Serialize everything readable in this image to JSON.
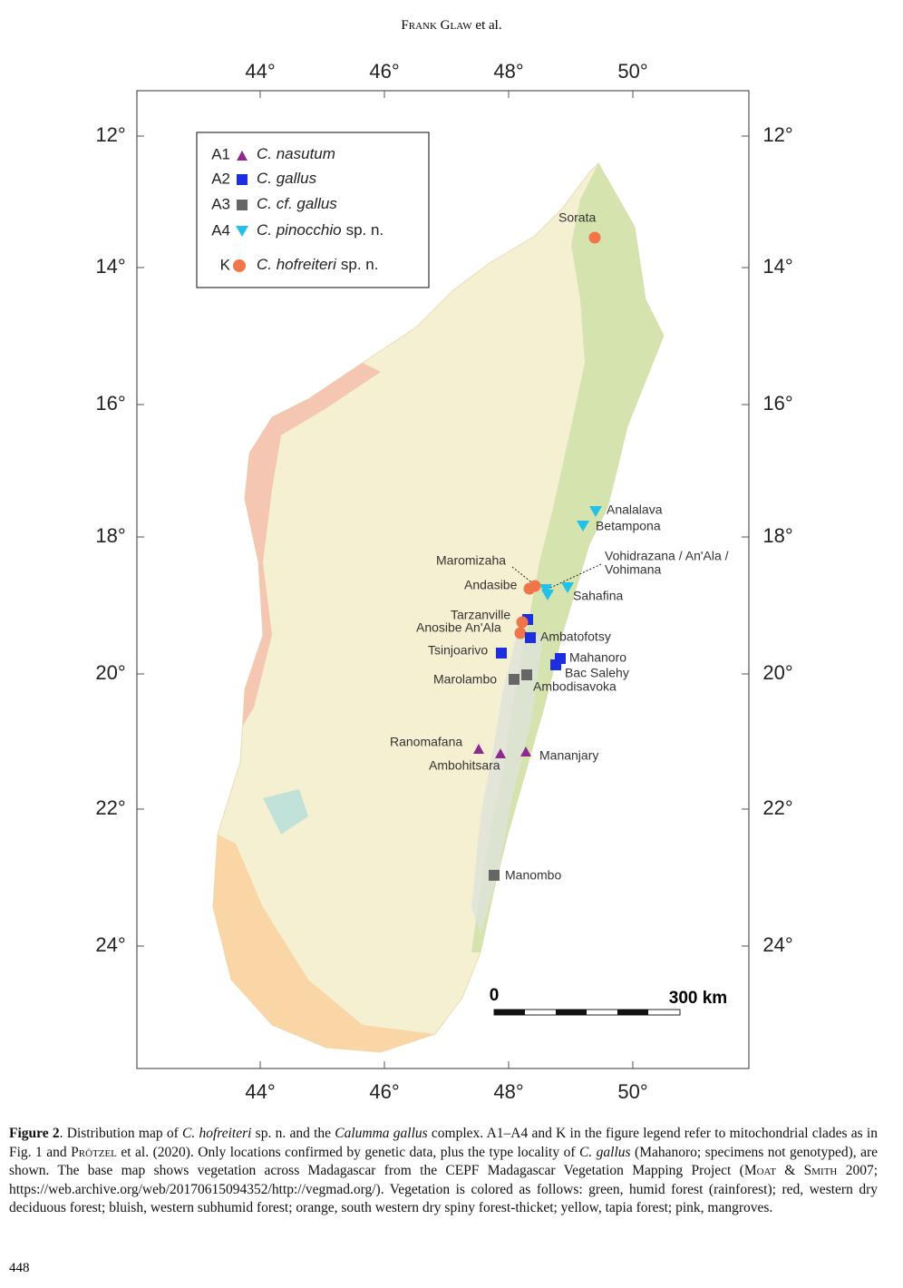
{
  "header": {
    "author": "Frank Glaw",
    "suffix": " et al."
  },
  "figure": {
    "lon_ticks": [
      "44°",
      "46°",
      "48°",
      "50°"
    ],
    "lat_ticks": [
      "12°",
      "14°",
      "16°",
      "18°",
      "20°",
      "22°",
      "24°"
    ],
    "legend": [
      {
        "clade": "A1",
        "species": "C. nasutum"
      },
      {
        "clade": "A2",
        "species": "C. gallus"
      },
      {
        "clade": "A3",
        "species": "C. cf. gallus"
      },
      {
        "clade": "A4",
        "species": "C. pinocchio",
        "suffix": "sp. n."
      },
      {
        "clade": "K",
        "species": "C. hofreiteri",
        "suffix": "sp. n."
      }
    ],
    "localities": [
      "Sorata",
      "Analalava",
      "Betampona",
      "Maromizaha",
      "Vohidrazana / An'Ala /",
      "Vohimana",
      "Andasibe",
      "Sahafina",
      "Tarzanville",
      "Anosibe An'Ala",
      "Ambatofotsy",
      "Tsinjoarivo",
      "Mahanoro",
      "Bac Salehy",
      "Marolambo",
      "Ambodisavoka",
      "Ranomafana",
      "Ambohitsara",
      "Mananjary",
      "Manombo"
    ],
    "scale": {
      "start": "0",
      "end": "300 km"
    }
  },
  "caption": {
    "runs": [
      "Figure 2",
      ". Distribution map of ",
      "C. hofreiteri",
      " sp. n. and the ",
      "Calumma gallus",
      " complex. A1–A4 and K in the figure legend refer to mitochondrial clades as in Fig. 1 and ",
      "Prötzel",
      " et al. (2020). Only locations confirmed by genetic data, plus the type locality of ",
      "C. gallus",
      " (Mahanoro; specimens not genotyped), are shown. The base map shows vegetation across Madagascar from the CEPF Madagascar Vegetation Mapping Project (",
      "Moat & Smith",
      " 2007; https://web.archive.org/web/20170615094352/http://vegmad.org/). Vegetation is colored as follows: green, humid forest (rainforest); red, western dry deciduous forest; bluish, western subhumid forest; orange, south western dry spiny forest-thicket; yellow, tapia forest; pink, mangroves."
    ]
  },
  "page_number": "448"
}
